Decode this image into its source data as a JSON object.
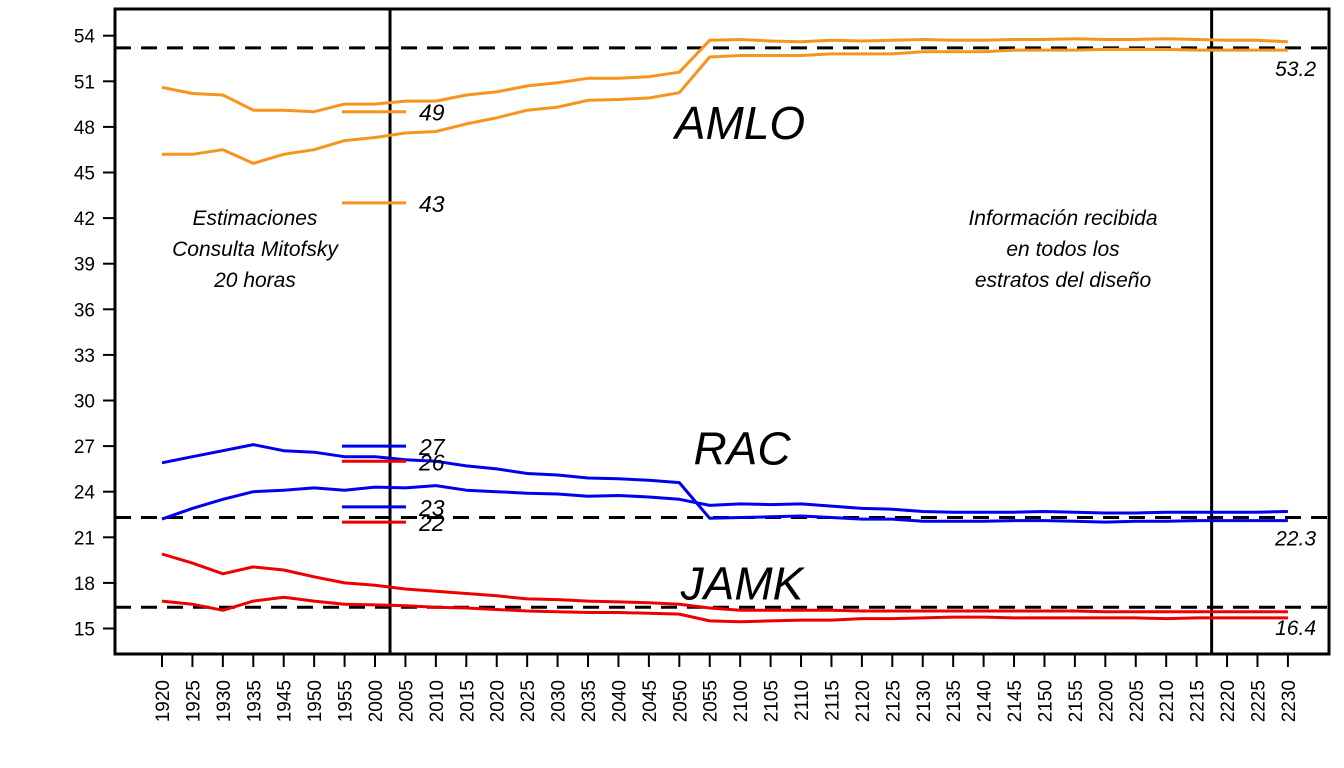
{
  "chart_data": {
    "type": "line",
    "title": "",
    "xlabel": "",
    "ylabel": "",
    "x": [
      "1920",
      "1925",
      "1930",
      "1935",
      "1945",
      "1950",
      "1955",
      "2000",
      "2005",
      "2010",
      "2015",
      "2020",
      "2025",
      "2030",
      "2035",
      "2040",
      "2045",
      "2050",
      "2055",
      "2100",
      "2105",
      "2110",
      "2115",
      "2120",
      "2125",
      "2130",
      "2135",
      "2140",
      "2145",
      "2150",
      "2155",
      "2200",
      "2205",
      "2210",
      "2215",
      "2220",
      "2225",
      "2230"
    ],
    "ylim": [
      14,
      55
    ],
    "yticks": [
      "15",
      "18",
      "21",
      "24",
      "27",
      "30",
      "33",
      "36",
      "39",
      "42",
      "45",
      "48",
      "51",
      "54"
    ],
    "grid": false,
    "series": [
      {
        "group": "AMLO",
        "color": "#F7941D",
        "values": [
          50.6,
          50.2,
          50.1,
          49.1,
          49.1,
          49.0,
          49.5,
          49.5,
          49.7,
          49.7,
          50.1,
          50.3,
          50.7,
          50.9,
          51.2,
          51.2,
          51.3,
          51.6,
          53.7,
          53.75,
          53.65,
          53.6,
          53.7,
          53.65,
          53.7,
          53.75,
          53.7,
          53.7,
          53.75,
          53.75,
          53.8,
          53.75,
          53.75,
          53.8,
          53.75,
          53.7,
          53.7,
          53.6
        ]
      },
      {
        "group": "AMLO",
        "color": "#F7941D",
        "values": [
          46.2,
          46.2,
          46.5,
          45.6,
          46.2,
          46.5,
          47.1,
          47.3,
          47.6,
          47.7,
          48.2,
          48.6,
          49.1,
          49.3,
          49.75,
          49.8,
          49.9,
          50.25,
          52.6,
          52.7,
          52.7,
          52.7,
          52.8,
          52.8,
          52.8,
          52.95,
          52.95,
          52.95,
          53.05,
          53.05,
          53.05,
          53.1,
          53.1,
          53.1,
          53.05,
          53.05,
          53.05,
          53.05
        ]
      },
      {
        "group": "RAC",
        "color": "#0000EE",
        "values": [
          25.9,
          26.3,
          26.7,
          27.1,
          26.7,
          26.6,
          26.3,
          26.3,
          26.1,
          26.0,
          25.7,
          25.5,
          25.2,
          25.1,
          24.9,
          24.85,
          24.75,
          24.6,
          22.25,
          22.3,
          22.35,
          22.4,
          22.3,
          22.2,
          22.2,
          22.05,
          22.05,
          22.05,
          22.1,
          22.1,
          22.05,
          22.0,
          22.05,
          22.05,
          22.1,
          22.1,
          22.1,
          22.1
        ]
      },
      {
        "group": "RAC",
        "color": "#0000EE",
        "values": [
          22.2,
          22.9,
          23.5,
          24.0,
          24.1,
          24.25,
          24.1,
          24.3,
          24.25,
          24.4,
          24.1,
          24.0,
          23.9,
          23.85,
          23.7,
          23.75,
          23.65,
          23.5,
          23.1,
          23.2,
          23.15,
          23.2,
          23.05,
          22.9,
          22.85,
          22.7,
          22.65,
          22.65,
          22.65,
          22.7,
          22.65,
          22.6,
          22.6,
          22.65,
          22.65,
          22.65,
          22.65,
          22.7
        ]
      },
      {
        "group": "JAMK",
        "color": "#EE0000",
        "values": [
          19.9,
          19.3,
          18.6,
          19.05,
          18.85,
          18.4,
          18.0,
          17.85,
          17.6,
          17.45,
          17.3,
          17.15,
          16.95,
          16.9,
          16.8,
          16.75,
          16.7,
          16.6,
          16.35,
          16.2,
          16.2,
          16.2,
          16.2,
          16.15,
          16.15,
          16.15,
          16.15,
          16.15,
          16.15,
          16.15,
          16.15,
          16.1,
          16.1,
          16.1,
          16.1,
          16.1,
          16.1,
          16.1
        ]
      },
      {
        "group": "JAMK",
        "color": "#EE0000",
        "values": [
          16.8,
          16.6,
          16.2,
          16.8,
          17.05,
          16.8,
          16.6,
          16.55,
          16.5,
          16.4,
          16.35,
          16.25,
          16.15,
          16.1,
          16.05,
          16.05,
          16.0,
          15.95,
          15.5,
          15.45,
          15.5,
          15.55,
          15.55,
          15.65,
          15.65,
          15.7,
          15.75,
          15.75,
          15.7,
          15.7,
          15.7,
          15.7,
          15.7,
          15.65,
          15.7,
          15.7,
          15.7,
          15.7
        ]
      }
    ],
    "hlines": [
      {
        "value": 53.2,
        "label": "53.2"
      },
      {
        "value": 22.3,
        "label": "22.3"
      },
      {
        "value": 16.4,
        "label": "16.4"
      }
    ],
    "vlines": [
      "2000",
      "2215"
    ],
    "segments": [
      {
        "y": 49,
        "label": "49",
        "color": "#F7941D"
      },
      {
        "y": 43,
        "label": "43",
        "color": "#F7941D"
      },
      {
        "y": 27,
        "label": "27",
        "color": "#0000EE"
      },
      {
        "y": 26,
        "label": "26",
        "color": "#EE0000"
      },
      {
        "y": 23,
        "label": "23",
        "color": "#0000EE"
      },
      {
        "y": 22,
        "label": "22",
        "color": "#EE0000"
      }
    ],
    "candidate_labels": [
      {
        "text": "AMLO",
        "y": 47.2
      },
      {
        "text": "RAC",
        "y": 25.8
      },
      {
        "text": "JAMK",
        "y": 16.9
      }
    ],
    "notes": {
      "left": [
        "Estimaciones",
        "Consulta Mitofsky",
        "20 horas"
      ],
      "right": [
        "Información recibida",
        "en todos los",
        "estratos del diseño"
      ]
    }
  }
}
